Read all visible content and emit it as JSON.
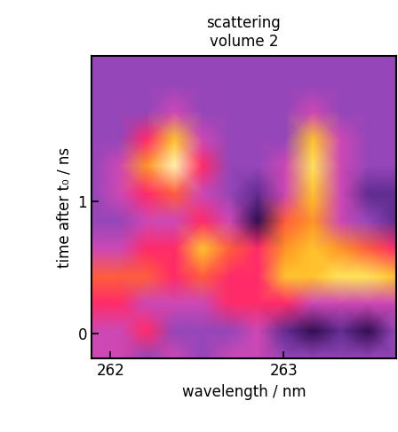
{
  "chart_data": {
    "type": "heatmap",
    "title": "scattering\nvolume 2",
    "x_label": "wavelength / nm",
    "y_label": "time after t₀ / ns",
    "x": [
      261.89,
      262.05,
      262.21,
      262.37,
      262.53,
      262.69,
      262.85,
      263.01,
      263.17,
      263.33,
      263.49,
      263.65
    ],
    "y": [
      -0.19,
      0.02,
      0.23,
      0.43,
      0.64,
      0.85,
      1.06,
      1.27,
      1.47,
      1.68,
      1.89,
      2.1
    ],
    "cells": [
      [
        4,
        4,
        3,
        4,
        3,
        4,
        4,
        3,
        3,
        3,
        3,
        3
      ],
      [
        4,
        4,
        5,
        3,
        3,
        3,
        4,
        2,
        1,
        2,
        1,
        3
      ],
      [
        5,
        5,
        4,
        4,
        4,
        5,
        5,
        5,
        4,
        4,
        4,
        4
      ],
      [
        6,
        6,
        6,
        5,
        6,
        5,
        5,
        8,
        8,
        9,
        9,
        8
      ],
      [
        4,
        4,
        5,
        5,
        8,
        6,
        5,
        7,
        8,
        7,
        6,
        5
      ],
      [
        3,
        3,
        4,
        4,
        5,
        4,
        1,
        6,
        7,
        4,
        3,
        2
      ],
      [
        3,
        4,
        5,
        6,
        4,
        3,
        2,
        4,
        8,
        4,
        2,
        2
      ],
      [
        3,
        4,
        7,
        10,
        5,
        3,
        3,
        4,
        9,
        4,
        3,
        3
      ],
      [
        3,
        3,
        5,
        8,
        4,
        3,
        3,
        3,
        8,
        4,
        3,
        3
      ],
      [
        3,
        3,
        3,
        4,
        3,
        3,
        3,
        3,
        4,
        3,
        3,
        3
      ],
      [
        3,
        3,
        3,
        3,
        3,
        3,
        3,
        3,
        3,
        3,
        3,
        3
      ],
      [
        3,
        3,
        3,
        3,
        3,
        3,
        3,
        3,
        3,
        3,
        3,
        3
      ]
    ],
    "zlim": [
      0,
      10
    ],
    "xlim": [
      261.89,
      263.65
    ],
    "ylim": [
      -0.19,
      2.1
    ],
    "xticks": [
      262,
      263
    ],
    "yticks": [
      0,
      1
    ]
  }
}
